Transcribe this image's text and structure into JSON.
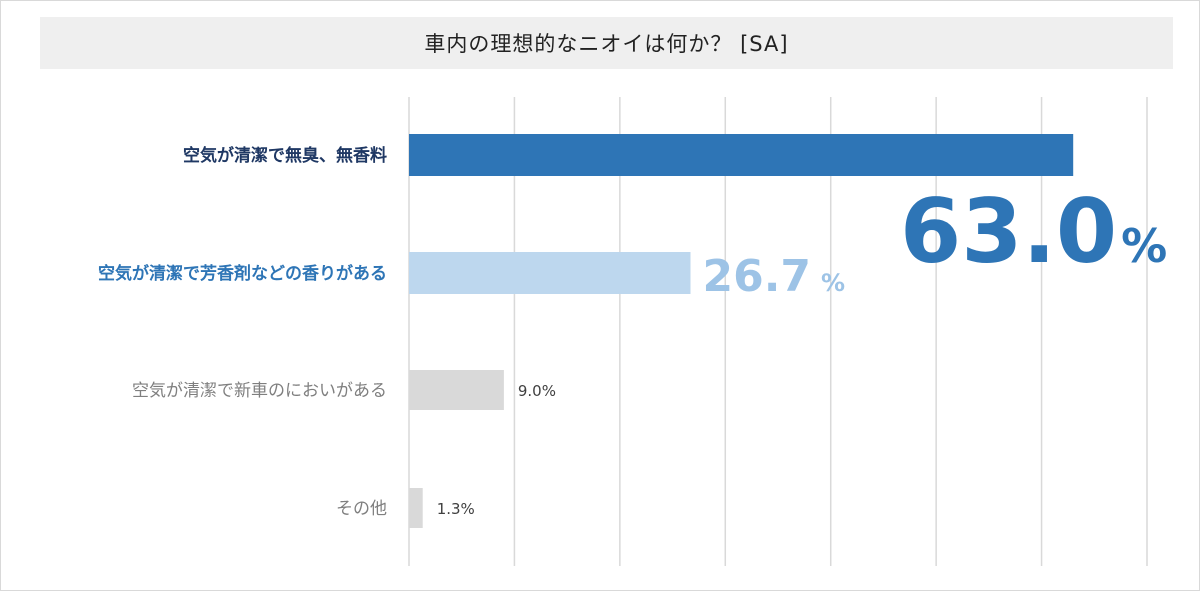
{
  "chart_data": {
    "type": "bar",
    "orientation": "horizontal",
    "title": "車内の理想的なニオイは何か？ [SA]",
    "categories": [
      "空気が清潔で無臭、無香料",
      "空気が清潔で芳香剤などの香りがある",
      "空気が清潔で新車のにおいがある",
      "その他"
    ],
    "values": [
      63.0,
      26.7,
      9.0,
      1.3
    ],
    "value_labels": [
      {
        "number": "63.0",
        "unit": "%"
      },
      {
        "number": "26.7",
        "unit": "%"
      },
      {
        "number": "9.0%",
        "unit": ""
      },
      {
        "number": "1.3%",
        "unit": ""
      }
    ],
    "xlim": [
      0,
      70
    ],
    "grid": true,
    "xlabel": "",
    "ylabel": "",
    "colors": {
      "bars": [
        "#2e75b6",
        "#bdd7ee",
        "#d9d9d9",
        "#d9d9d9"
      ],
      "category_labels": [
        "#1f3864",
        "#2e75b6",
        "#7f7f7f",
        "#7f7f7f"
      ],
      "value_labels": [
        "#2e75b6",
        "#9dc3e6",
        "#404040",
        "#404040"
      ],
      "gridline": "#d9d9d9",
      "title_band": "#efefef"
    },
    "label_emphasis": [
      "bold",
      "bold",
      "normal",
      "normal"
    ]
  }
}
